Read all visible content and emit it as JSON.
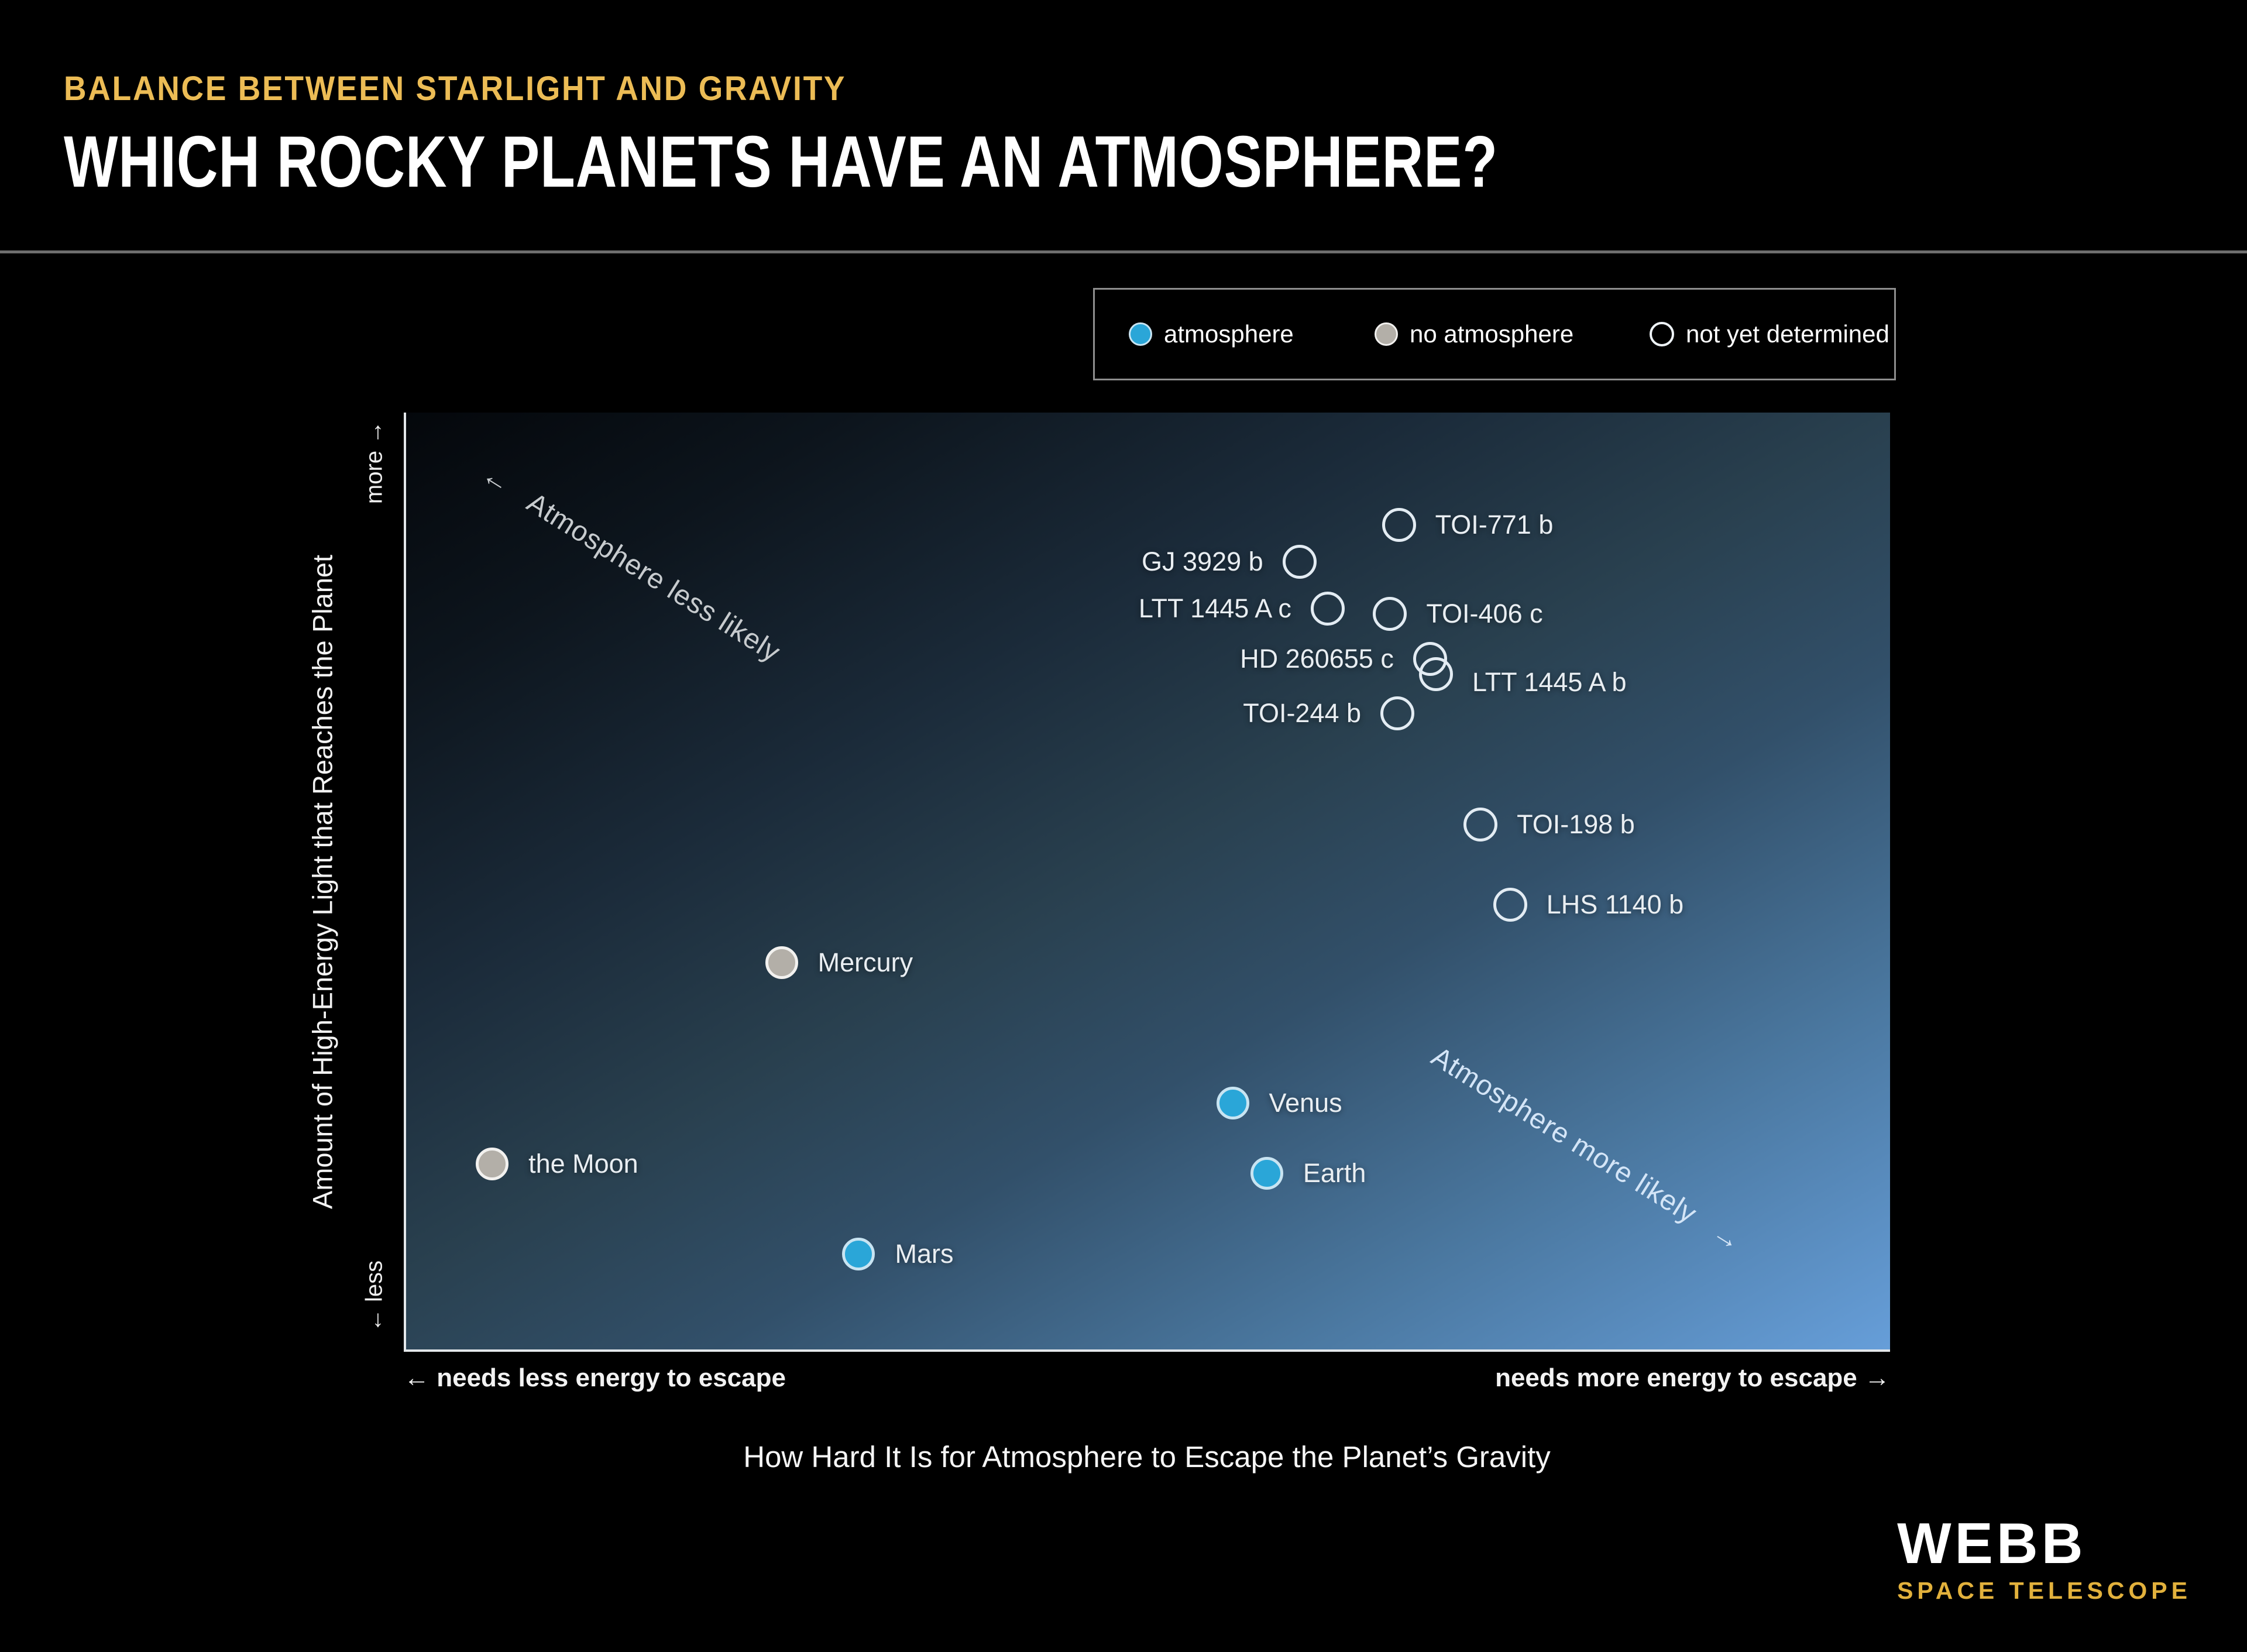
{
  "header": {
    "kicker": "BALANCE BETWEEN STARLIGHT AND GRAVITY",
    "title": "WHICH ROCKY PLANETS HAVE AN ATMOSPHERE?"
  },
  "legend": {
    "items": [
      {
        "label": "atmosphere",
        "type": "atmosphere"
      },
      {
        "label": "no atmosphere",
        "type": "no-atmosphere"
      },
      {
        "label": "not yet determined",
        "type": "open"
      }
    ]
  },
  "chart_data": {
    "type": "scatter",
    "title": "Which Rocky Planets Have an Atmosphere?",
    "xlabel": "How Hard It Is for Atmosphere to Escape the Planet’s Gravity",
    "ylabel": "Amount of High-Energy Light that Reaches the Planet",
    "x_axis_annotations": {
      "left": "← needs less energy to escape",
      "right": "needs more energy to escape →"
    },
    "y_axis_annotations": {
      "top": "more →",
      "bottom": "← less"
    },
    "axes_note": "Qualitative axes: x_pct = % across plot (right = needs more energy to escape), y_pct = % down from plot top (top = more high-energy light)",
    "grid": false,
    "legend_position": "top-right",
    "annotations": {
      "less_likely": {
        "arrow": "←",
        "text": "Atmosphere less likely",
        "rotation_deg": 32
      },
      "more_likely": {
        "text": "Atmosphere more likely",
        "arrow": "→",
        "rotation_deg": 32
      }
    },
    "points": [
      {
        "name": "TOI-771 b",
        "status": "not yet determined",
        "x_pct": 66.9,
        "y_pct": 12.0,
        "label_side": "right"
      },
      {
        "name": "GJ 3929 b",
        "status": "not yet determined",
        "x_pct": 60.2,
        "y_pct": 15.9,
        "label_side": "left"
      },
      {
        "name": "LTT 1445 A c",
        "status": "not yet determined",
        "x_pct": 62.1,
        "y_pct": 20.9,
        "label_side": "left"
      },
      {
        "name": "TOI-406 c",
        "status": "not yet determined",
        "x_pct": 66.3,
        "y_pct": 21.5,
        "label_side": "right"
      },
      {
        "name": "HD 260655 c",
        "status": "not yet determined",
        "x_pct": 69.0,
        "y_pct": 26.3,
        "label_side": "left"
      },
      {
        "name": "LTT 1445 A b",
        "status": "not yet determined",
        "x_pct": 69.4,
        "y_pct": 27.9,
        "label_side": "right",
        "label_dy": 14
      },
      {
        "name": "TOI-244 b",
        "status": "not yet determined",
        "x_pct": 66.8,
        "y_pct": 32.1,
        "label_side": "left"
      },
      {
        "name": "TOI-198 b",
        "status": "not yet determined",
        "x_pct": 72.4,
        "y_pct": 44.0,
        "label_side": "right"
      },
      {
        "name": "LHS 1140 b",
        "status": "not yet determined",
        "x_pct": 74.4,
        "y_pct": 52.5,
        "label_side": "right"
      },
      {
        "name": "Mercury",
        "status": "no atmosphere",
        "x_pct": 25.3,
        "y_pct": 58.7,
        "label_side": "right"
      },
      {
        "name": "Venus",
        "status": "atmosphere",
        "x_pct": 55.7,
        "y_pct": 73.7,
        "label_side": "right"
      },
      {
        "name": "the Moon",
        "status": "no atmosphere",
        "x_pct": 5.8,
        "y_pct": 80.2,
        "label_side": "right"
      },
      {
        "name": "Earth",
        "status": "atmosphere",
        "x_pct": 58.0,
        "y_pct": 81.2,
        "label_side": "right"
      },
      {
        "name": "Mars",
        "status": "atmosphere",
        "x_pct": 30.5,
        "y_pct": 89.8,
        "label_side": "right"
      }
    ]
  },
  "footer": {
    "logo_title": "WEBB",
    "logo_subtitle": "SPACE TELESCOPE"
  },
  "colors": {
    "background": "#000000",
    "accent_gold": "#ecbc55",
    "logo_gold": "#e2b13c",
    "atmosphere_dot": "#2aa6d8",
    "no_atmosphere_dot": "#b3afa8",
    "undetermined_ring": "#e3ecf3",
    "plot_gradient_dark": "#04070b",
    "plot_gradient_bright": "#669ed9",
    "divider": "#6e6e6e"
  }
}
